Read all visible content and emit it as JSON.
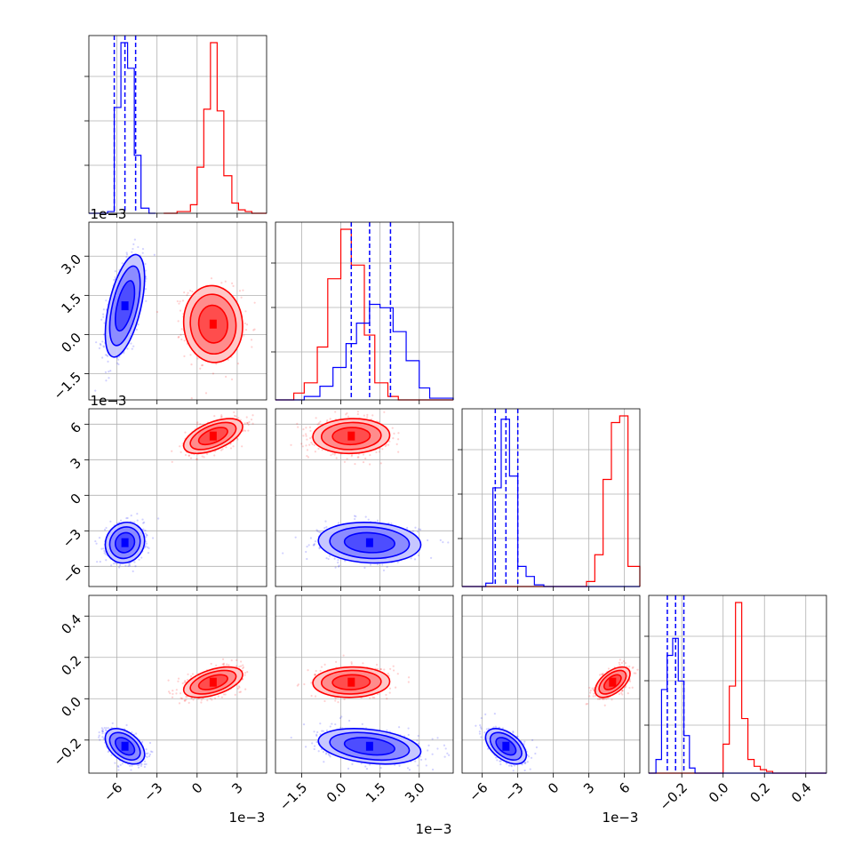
{
  "chart_data": {
    "type": "corner",
    "grid": true,
    "series": [
      {
        "name": "",
        "color": "#0000ff"
      },
      {
        "name": "",
        "color": "#ff0000"
      }
    ],
    "parameters": [
      {
        "index": 0,
        "offset_label": "1e−3",
        "range": [
          -0.0081,
          0.0052
        ],
        "ticks": [
          -0.006,
          -0.003,
          0.0,
          0.003
        ],
        "tick_labels": [
          "−6",
          "−3",
          "0",
          "3"
        ],
        "quantiles_blue": [
          -0.0062,
          -0.0054,
          -0.0046
        ]
      },
      {
        "index": 1,
        "offset_label": "1e−3",
        "range": [
          -0.0025,
          0.0043
        ],
        "ticks": [
          -0.0015,
          0.0,
          0.0015,
          0.003
        ],
        "tick_labels": [
          "−1.5",
          "0.0",
          "1.5",
          "3.0"
        ],
        "quantiles_blue": [
          0.0004,
          0.0011,
          0.0019
        ]
      },
      {
        "index": 2,
        "offset_label": "1e−3",
        "range": [
          -0.0077,
          0.0073
        ],
        "ticks": [
          -0.006,
          -0.003,
          0.0,
          0.003,
          0.006
        ],
        "tick_labels": [
          "−6",
          "−3",
          "0",
          "3",
          "6"
        ],
        "quantiles_blue": [
          -0.0049,
          -0.004,
          -0.003
        ]
      },
      {
        "index": 3,
        "offset_label": "",
        "range": [
          -0.36,
          0.5
        ],
        "ticks": [
          -0.2,
          0.0,
          0.2,
          0.4
        ],
        "tick_labels": [
          "−0.2",
          "0.0",
          "0.2",
          "0.4"
        ],
        "quantiles_blue": [
          -0.27,
          -0.23,
          -0.19
        ]
      }
    ],
    "histograms": {
      "p0": {
        "blue": {
          "edges": [
            -0.0081,
            -0.0067,
            -0.0062,
            -0.0057,
            -0.0052,
            -0.0047,
            -0.0042,
            -0.0036,
            -0.0031
          ],
          "counts": [
            0,
            1,
            62,
            100,
            85,
            34,
            3,
            0
          ]
        },
        "red": {
          "edges": [
            -0.0025,
            -0.0015,
            -0.0005,
            0.0,
            0.0005,
            0.001,
            0.0015,
            0.002,
            0.0026,
            0.0031,
            0.0036,
            0.0041,
            0.0052
          ],
          "counts": [
            0,
            1,
            5,
            27,
            61,
            100,
            60,
            22,
            6,
            2,
            1,
            0
          ]
        }
      },
      "p1": {
        "blue": {
          "edges": [
            -0.0025,
            -0.0014,
            -0.0008,
            -0.0003,
            0.0002,
            0.0006,
            0.0011,
            0.0015,
            0.002,
            0.0025,
            0.003,
            0.0034,
            0.0043
          ],
          "counts": [
            0,
            2,
            8,
            19,
            33,
            45,
            56,
            54,
            40,
            23,
            7,
            1
          ]
        },
        "red": {
          "edges": [
            -0.0025,
            -0.0018,
            -0.0014,
            -0.0009,
            -0.0005,
            0.0,
            0.0004,
            0.0009,
            0.0013,
            0.0018,
            0.0022,
            0.0043
          ],
          "counts": [
            0,
            4,
            10,
            31,
            71,
            100,
            79,
            38,
            10,
            2,
            0
          ]
        }
      },
      "p2": {
        "blue": {
          "edges": [
            -0.0077,
            -0.0057,
            -0.0051,
            -0.0044,
            -0.0037,
            -0.003,
            -0.0023,
            -0.0016,
            -0.0008,
            0.0,
            0.0073
          ],
          "counts": [
            0,
            2,
            59,
            100,
            66,
            12,
            6,
            1,
            0,
            0
          ]
        },
        "red": {
          "edges": [
            -0.0077,
            0.0028,
            0.0035,
            0.0042,
            0.0049,
            0.0056,
            0.0063,
            0.0073
          ],
          "counts": [
            0,
            3,
            19,
            64,
            98,
            102,
            12
          ]
        }
      },
      "p3": {
        "blue": {
          "edges": [
            -0.36,
            -0.325,
            -0.298,
            -0.271,
            -0.244,
            -0.217,
            -0.19,
            -0.163,
            -0.136,
            0.5
          ],
          "counts": [
            0,
            8,
            49,
            69,
            79,
            54,
            22,
            3,
            0
          ]
        },
        "red": {
          "edges": [
            -0.36,
            0.0,
            0.03,
            0.06,
            0.09,
            0.12,
            0.15,
            0.18,
            0.21,
            0.24,
            0.27,
            0.5
          ],
          "counts": [
            0,
            17,
            51,
            100,
            32,
            8,
            4,
            2,
            1,
            0,
            0
          ]
        }
      }
    },
    "clusters": {
      "blue": {
        "mean": [
          -0.0054,
          0.0011,
          -0.004,
          -0.23
        ],
        "std": [
          0.0006,
          0.0008,
          0.0007,
          0.035
        ]
      },
      "red": {
        "mean": [
          0.0012,
          0.0004,
          0.005,
          0.08
        ],
        "std": [
          0.0009,
          0.0006,
          0.0006,
          0.03
        ]
      }
    },
    "pair_correlations": {
      "1_0": {
        "blue": 0.55,
        "red": -0.05
      },
      "2_0": {
        "blue": 0.1,
        "red": 0.55
      },
      "2_1": {
        "blue": -0.1,
        "red": 0.05
      },
      "3_0": {
        "blue": -0.45,
        "red": 0.5
      },
      "3_1": {
        "blue": -0.3,
        "red": 0.05
      },
      "3_2": {
        "blue": -0.5,
        "red": 0.55
      }
    }
  }
}
